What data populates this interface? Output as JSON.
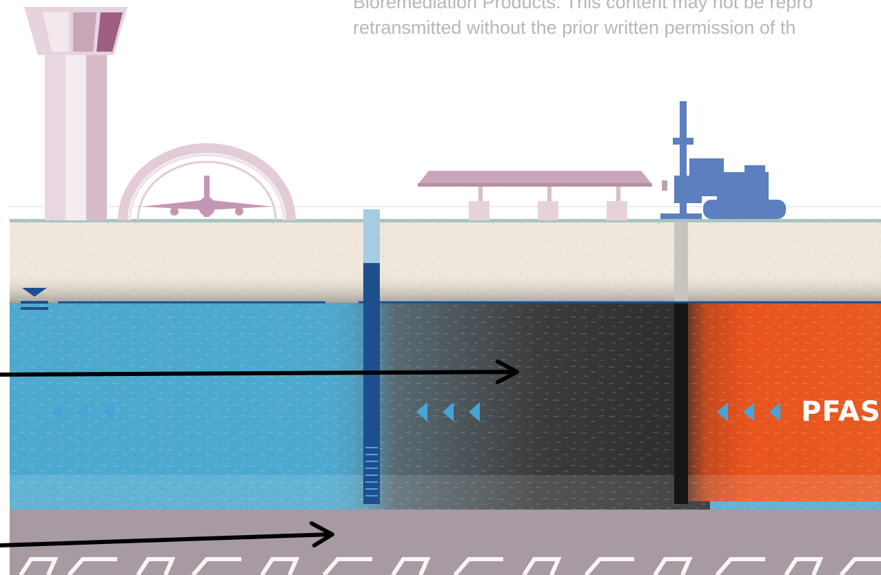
{
  "copyright": {
    "line1": "Bioremediation Products. This content may not be repro",
    "line2": "retransmitted without the prior written permission of th"
  },
  "labels": {
    "pfas": "PFAS"
  },
  "colors": {
    "sky": "#ffffff",
    "vadose_soil": "#efe7dc",
    "aquifer": "#4ea9cf",
    "treated_zone": "#3a3a3a",
    "pfas_plume": "#e8541e",
    "bedrock": "#a89aa3",
    "structures": "#d7bdcc",
    "rig": "#5b7fbf",
    "water_table": "#1d4f8f",
    "flow_arrows": "#4aa3d8"
  },
  "icons": [
    "water-table-symbol",
    "flow-direction-arrows",
    "callout-arrow"
  ]
}
